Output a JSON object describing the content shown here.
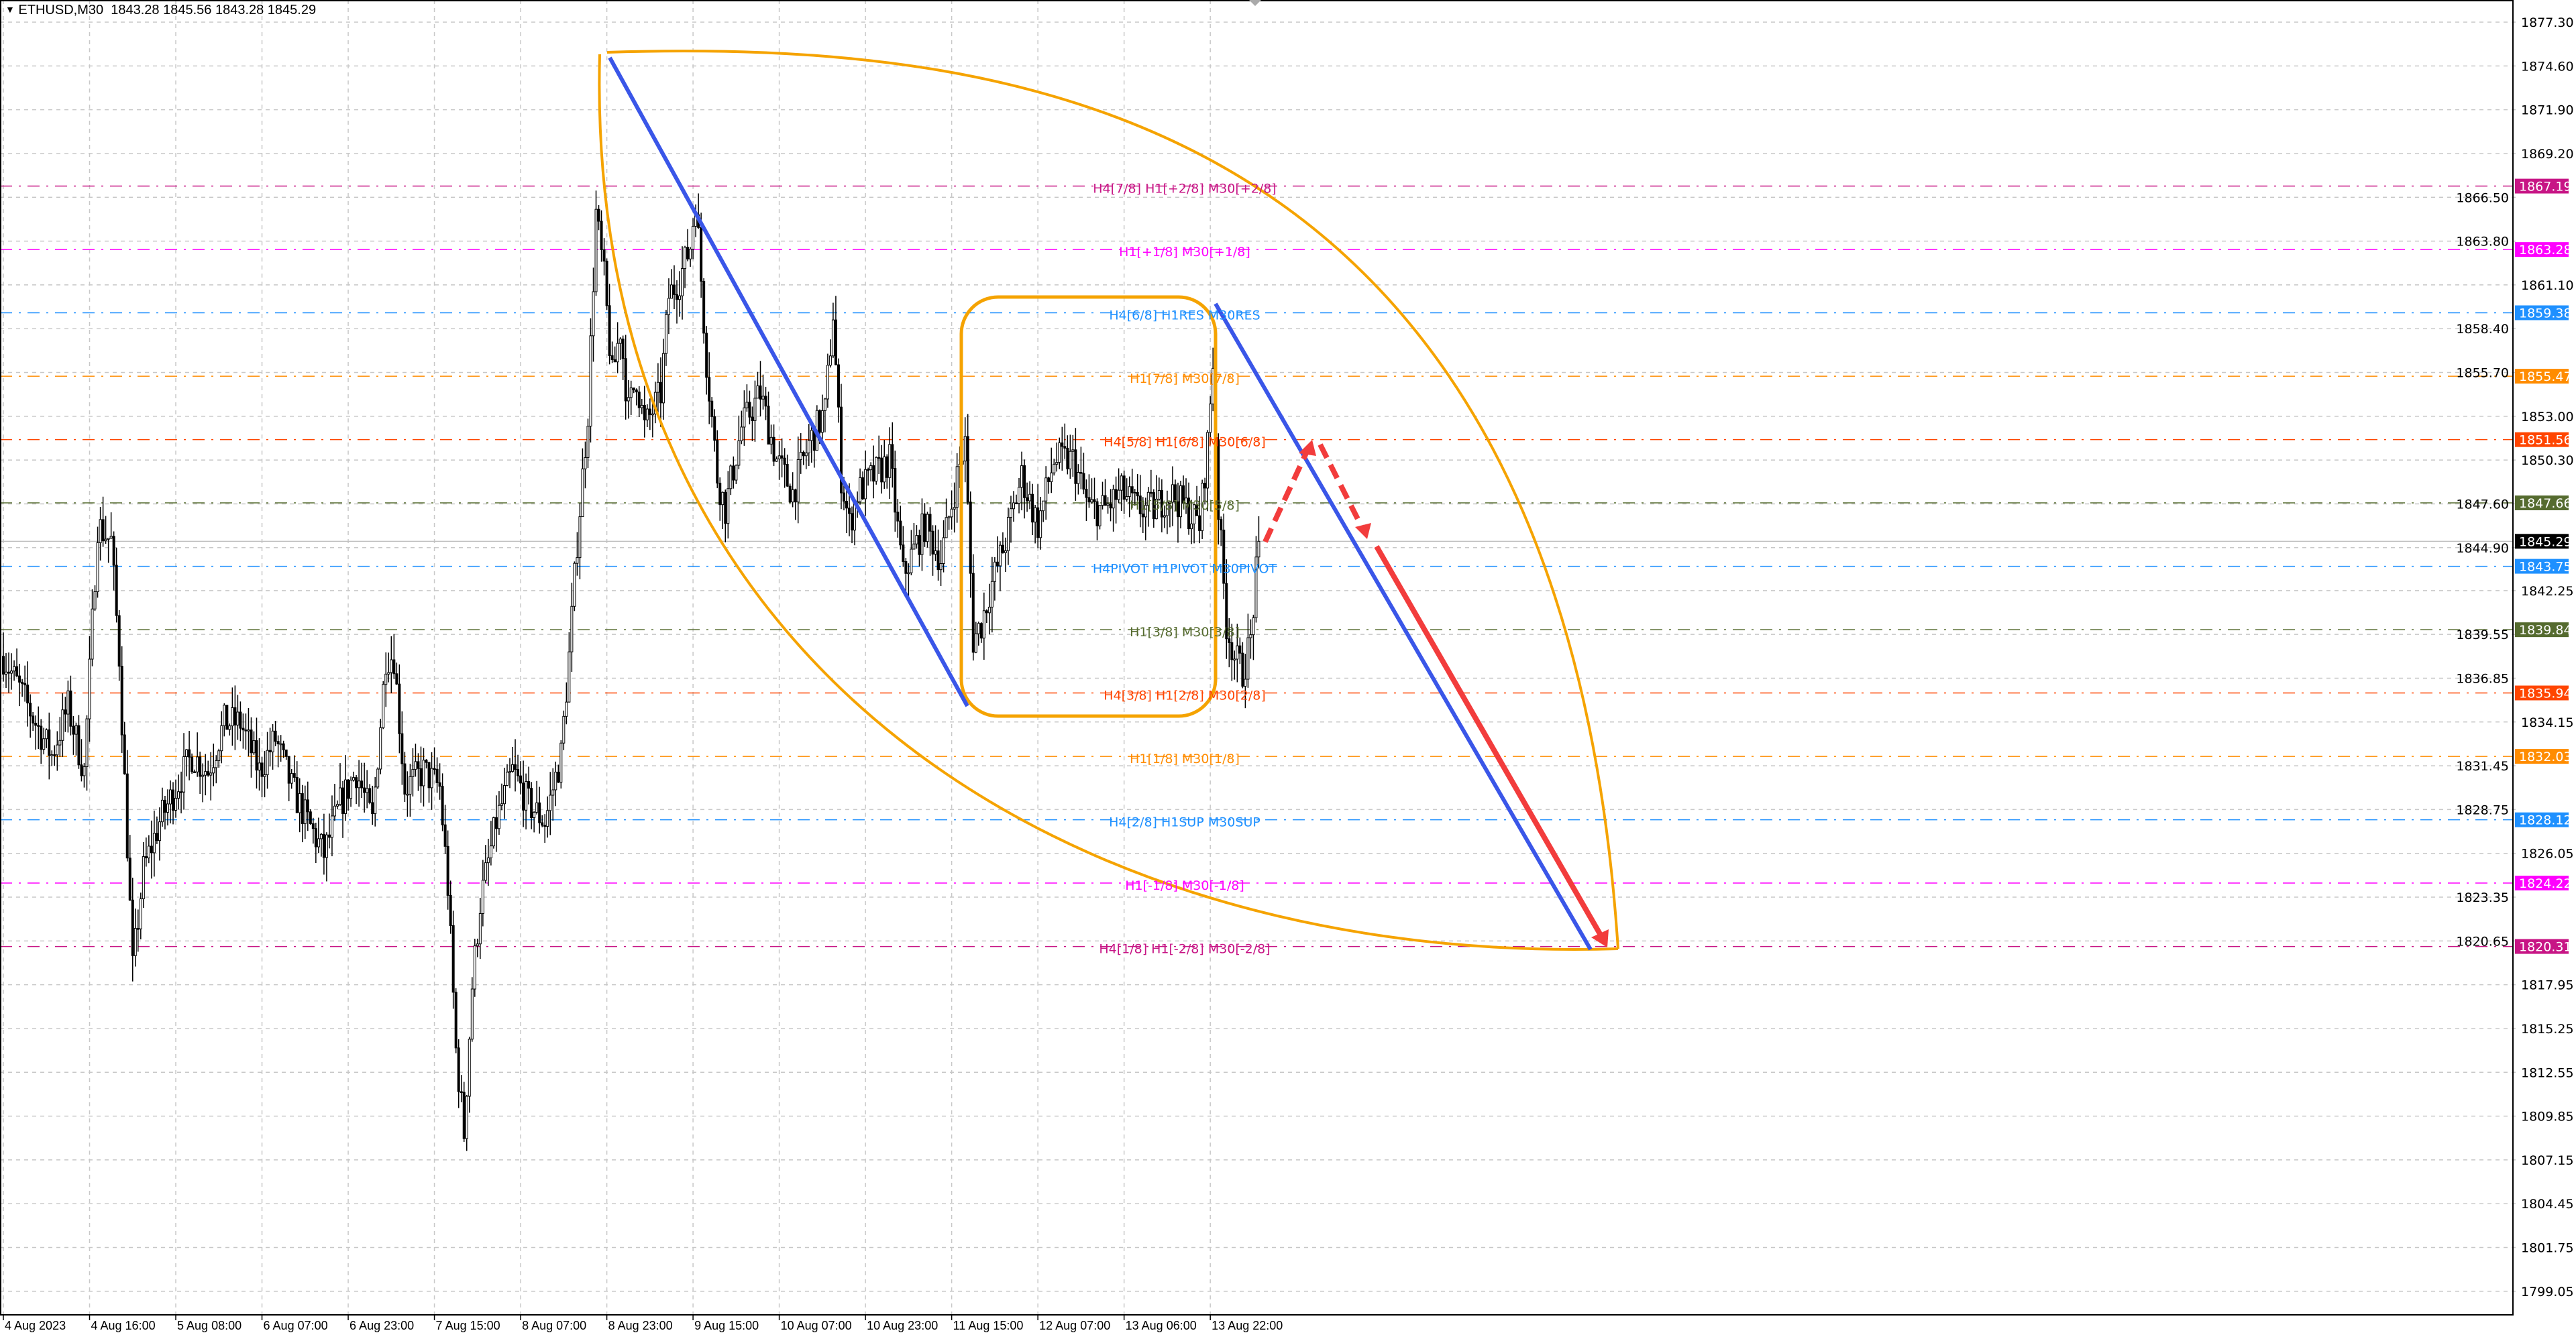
{
  "header": {
    "symbol_menu_icon": "triangle-down-icon",
    "symbol": "ETHUSD,M30",
    "ohlc": "1843.28 1845.56 1843.28 1845.29"
  },
  "chart_data": {
    "type": "candlestick",
    "symbol": "ETHUSD",
    "timeframe": "M30",
    "ylim": [
      1797.7,
      1878.6
    ],
    "grid": true,
    "y_ticks": [
      "1877.30",
      "1874.60",
      "1871.90",
      "1869.20",
      "1866.50",
      "1863.80",
      "1861.10",
      "1858.40",
      "1855.70",
      "1853.00",
      "1850.30",
      "1847.60",
      "1844.90",
      "1842.25",
      "1839.55",
      "1836.85",
      "1834.15",
      "1831.45",
      "1828.75",
      "1826.05",
      "1823.35",
      "1820.65",
      "1817.95",
      "1815.25",
      "1812.55",
      "1809.85",
      "1807.15",
      "1804.45",
      "1801.75",
      "1799.05"
    ],
    "x_ticks": [
      {
        "bar": 0,
        "label": "4 Aug 2023"
      },
      {
        "bar": 32,
        "label": "4 Aug 16:00"
      },
      {
        "bar": 64,
        "label": "5 Aug 08:00"
      },
      {
        "bar": 96,
        "label": "6 Aug 07:00"
      },
      {
        "bar": 128,
        "label": "6 Aug 23:00"
      },
      {
        "bar": 160,
        "label": "7 Aug 15:00"
      },
      {
        "bar": 192,
        "label": "8 Aug 07:00"
      },
      {
        "bar": 224,
        "label": "8 Aug 23:00"
      },
      {
        "bar": 256,
        "label": "9 Aug 15:00"
      },
      {
        "bar": 288,
        "label": "10 Aug 07:00"
      },
      {
        "bar": 320,
        "label": "10 Aug 23:00"
      },
      {
        "bar": 352,
        "label": "11 Aug 15:00"
      },
      {
        "bar": 384,
        "label": "12 Aug 07:00"
      },
      {
        "bar": 416,
        "label": "13 Aug 06:00"
      },
      {
        "bar": 448,
        "label": "13 Aug 22:00"
      }
    ],
    "price_path_approx": [
      [
        0,
        1838.2
      ],
      [
        6,
        1836.2
      ],
      [
        12,
        1834.1
      ],
      [
        18,
        1832.1
      ],
      [
        24,
        1835.1
      ],
      [
        30,
        1831.1
      ],
      [
        35,
        1846.3
      ],
      [
        40,
        1845.3
      ],
      [
        43,
        1838.2
      ],
      [
        48,
        1818.9
      ],
      [
        52,
        1825.0
      ],
      [
        58,
        1828.0
      ],
      [
        64,
        1830.1
      ],
      [
        70,
        1832.1
      ],
      [
        76,
        1831.1
      ],
      [
        82,
        1834.1
      ],
      [
        88,
        1834.1
      ],
      [
        95,
        1831.1
      ],
      [
        101,
        1833.1
      ],
      [
        107,
        1830.1
      ],
      [
        113,
        1828.0
      ],
      [
        119,
        1826.0
      ],
      [
        125,
        1829.1
      ],
      [
        131,
        1831.1
      ],
      [
        137,
        1828.0
      ],
      [
        142,
        1838.2
      ],
      [
        145,
        1838.2
      ],
      [
        149,
        1830.1
      ],
      [
        156,
        1831.1
      ],
      [
        162,
        1830.1
      ],
      [
        165,
        1824.0
      ],
      [
        168,
        1813.9
      ],
      [
        171,
        1808.8
      ],
      [
        174,
        1817.9
      ],
      [
        177,
        1823.0
      ],
      [
        183,
        1828.0
      ],
      [
        189,
        1831.1
      ],
      [
        195,
        1829.1
      ],
      [
        201,
        1828.0
      ],
      [
        207,
        1832.1
      ],
      [
        210,
        1838.2
      ],
      [
        213,
        1845.3
      ],
      [
        217,
        1853.3
      ],
      [
        220,
        1865.5
      ],
      [
        223,
        1861.5
      ],
      [
        226,
        1855.4
      ],
      [
        229,
        1858.4
      ],
      [
        232,
        1853.3
      ],
      [
        235,
        1855.4
      ],
      [
        238,
        1852.3
      ],
      [
        244,
        1854.4
      ],
      [
        247,
        1860.4
      ],
      [
        251,
        1861.5
      ],
      [
        255,
        1863.5
      ],
      [
        257,
        1866.5
      ],
      [
        261,
        1856.4
      ],
      [
        265,
        1849.3
      ],
      [
        268,
        1847.3
      ],
      [
        274,
        1852.3
      ],
      [
        281,
        1854.4
      ],
      [
        287,
        1850.3
      ],
      [
        293,
        1848.3
      ],
      [
        299,
        1851.3
      ],
      [
        305,
        1853.3
      ],
      [
        308,
        1859.4
      ],
      [
        311,
        1849.3
      ],
      [
        314,
        1846.3
      ],
      [
        317,
        1848.3
      ],
      [
        323,
        1849.3
      ],
      [
        329,
        1850.3
      ],
      [
        334,
        1843.2
      ],
      [
        342,
        1846.3
      ],
      [
        348,
        1844.2
      ],
      [
        354,
        1849.3
      ],
      [
        357,
        1851.3
      ],
      [
        360,
        1839.2
      ],
      [
        363,
        1840.2
      ],
      [
        366,
        1842.2
      ],
      [
        372,
        1845.3
      ],
      [
        378,
        1849.3
      ],
      [
        384,
        1846.3
      ],
      [
        390,
        1850.3
      ],
      [
        397,
        1850.3
      ],
      [
        403,
        1847.3
      ],
      [
        409,
        1847.3
      ],
      [
        415,
        1848.3
      ],
      [
        421,
        1847.3
      ],
      [
        427,
        1847.3
      ],
      [
        433,
        1848.3
      ],
      [
        439,
        1847.3
      ],
      [
        444,
        1846.3
      ],
      [
        447,
        1851.3
      ],
      [
        449,
        1856.4
      ],
      [
        451,
        1847.3
      ],
      [
        454,
        1840.2
      ],
      [
        457,
        1838.2
      ],
      [
        460,
        1837.2
      ],
      [
        463,
        1839.2
      ],
      [
        466,
        1845.29
      ]
    ],
    "current_price": {
      "value": "1845.29",
      "color": "#000000"
    },
    "levels": [
      {
        "price": "1867.19",
        "label": "H4[7/8] H1[+2/8] M30[+2/8]",
        "color": "#c71585"
      },
      {
        "price": "1863.28",
        "label": "H1[+1/8] M30[+1/8]",
        "color": "#ff00ff"
      },
      {
        "price": "1859.38",
        "label": "H4[6/8] H1RES M30RES",
        "color": "#1e90ff"
      },
      {
        "price": "1855.47",
        "label": "H1[7/8] M30[7/8]",
        "color": "#ff8c00"
      },
      {
        "price": "1851.56",
        "label": "H4[5/8] H1[6/8] M30[6/8]",
        "color": "#ff4500"
      },
      {
        "price": "1847.66",
        "label": "H1[5/8] M30[5/8]",
        "color": "#556b2f"
      },
      {
        "price": "1843.75",
        "label": "H4PIVOT H1PIVOT M30PIVOT",
        "color": "#1e90ff"
      },
      {
        "price": "1839.84",
        "label": "H1[3/8] M30[3/8]",
        "color": "#556b2f"
      },
      {
        "price": "1835.94",
        "label": "H4[3/8] H1[2/8] M30[2/8]",
        "color": "#ff4500"
      },
      {
        "price": "1832.03",
        "label": "H1[1/8] M30[1/8]",
        "color": "#ff8c00"
      },
      {
        "price": "1828.12",
        "label": "H4[2/8] H1SUP M30SUP",
        "color": "#1e90ff"
      },
      {
        "price": "1824.22",
        "label": "H1[-1/8] M30[-1/8]",
        "color": "#ff00ff"
      },
      {
        "price": "1820.31",
        "label": "H4[1/8] H1[-2/8] M30[-2/8]",
        "color": "#c71585"
      }
    ],
    "drawings": {
      "trendline_color": "#3a56e8",
      "arrow_color": "#f23c3c",
      "shape_color": "#f5a300"
    }
  }
}
